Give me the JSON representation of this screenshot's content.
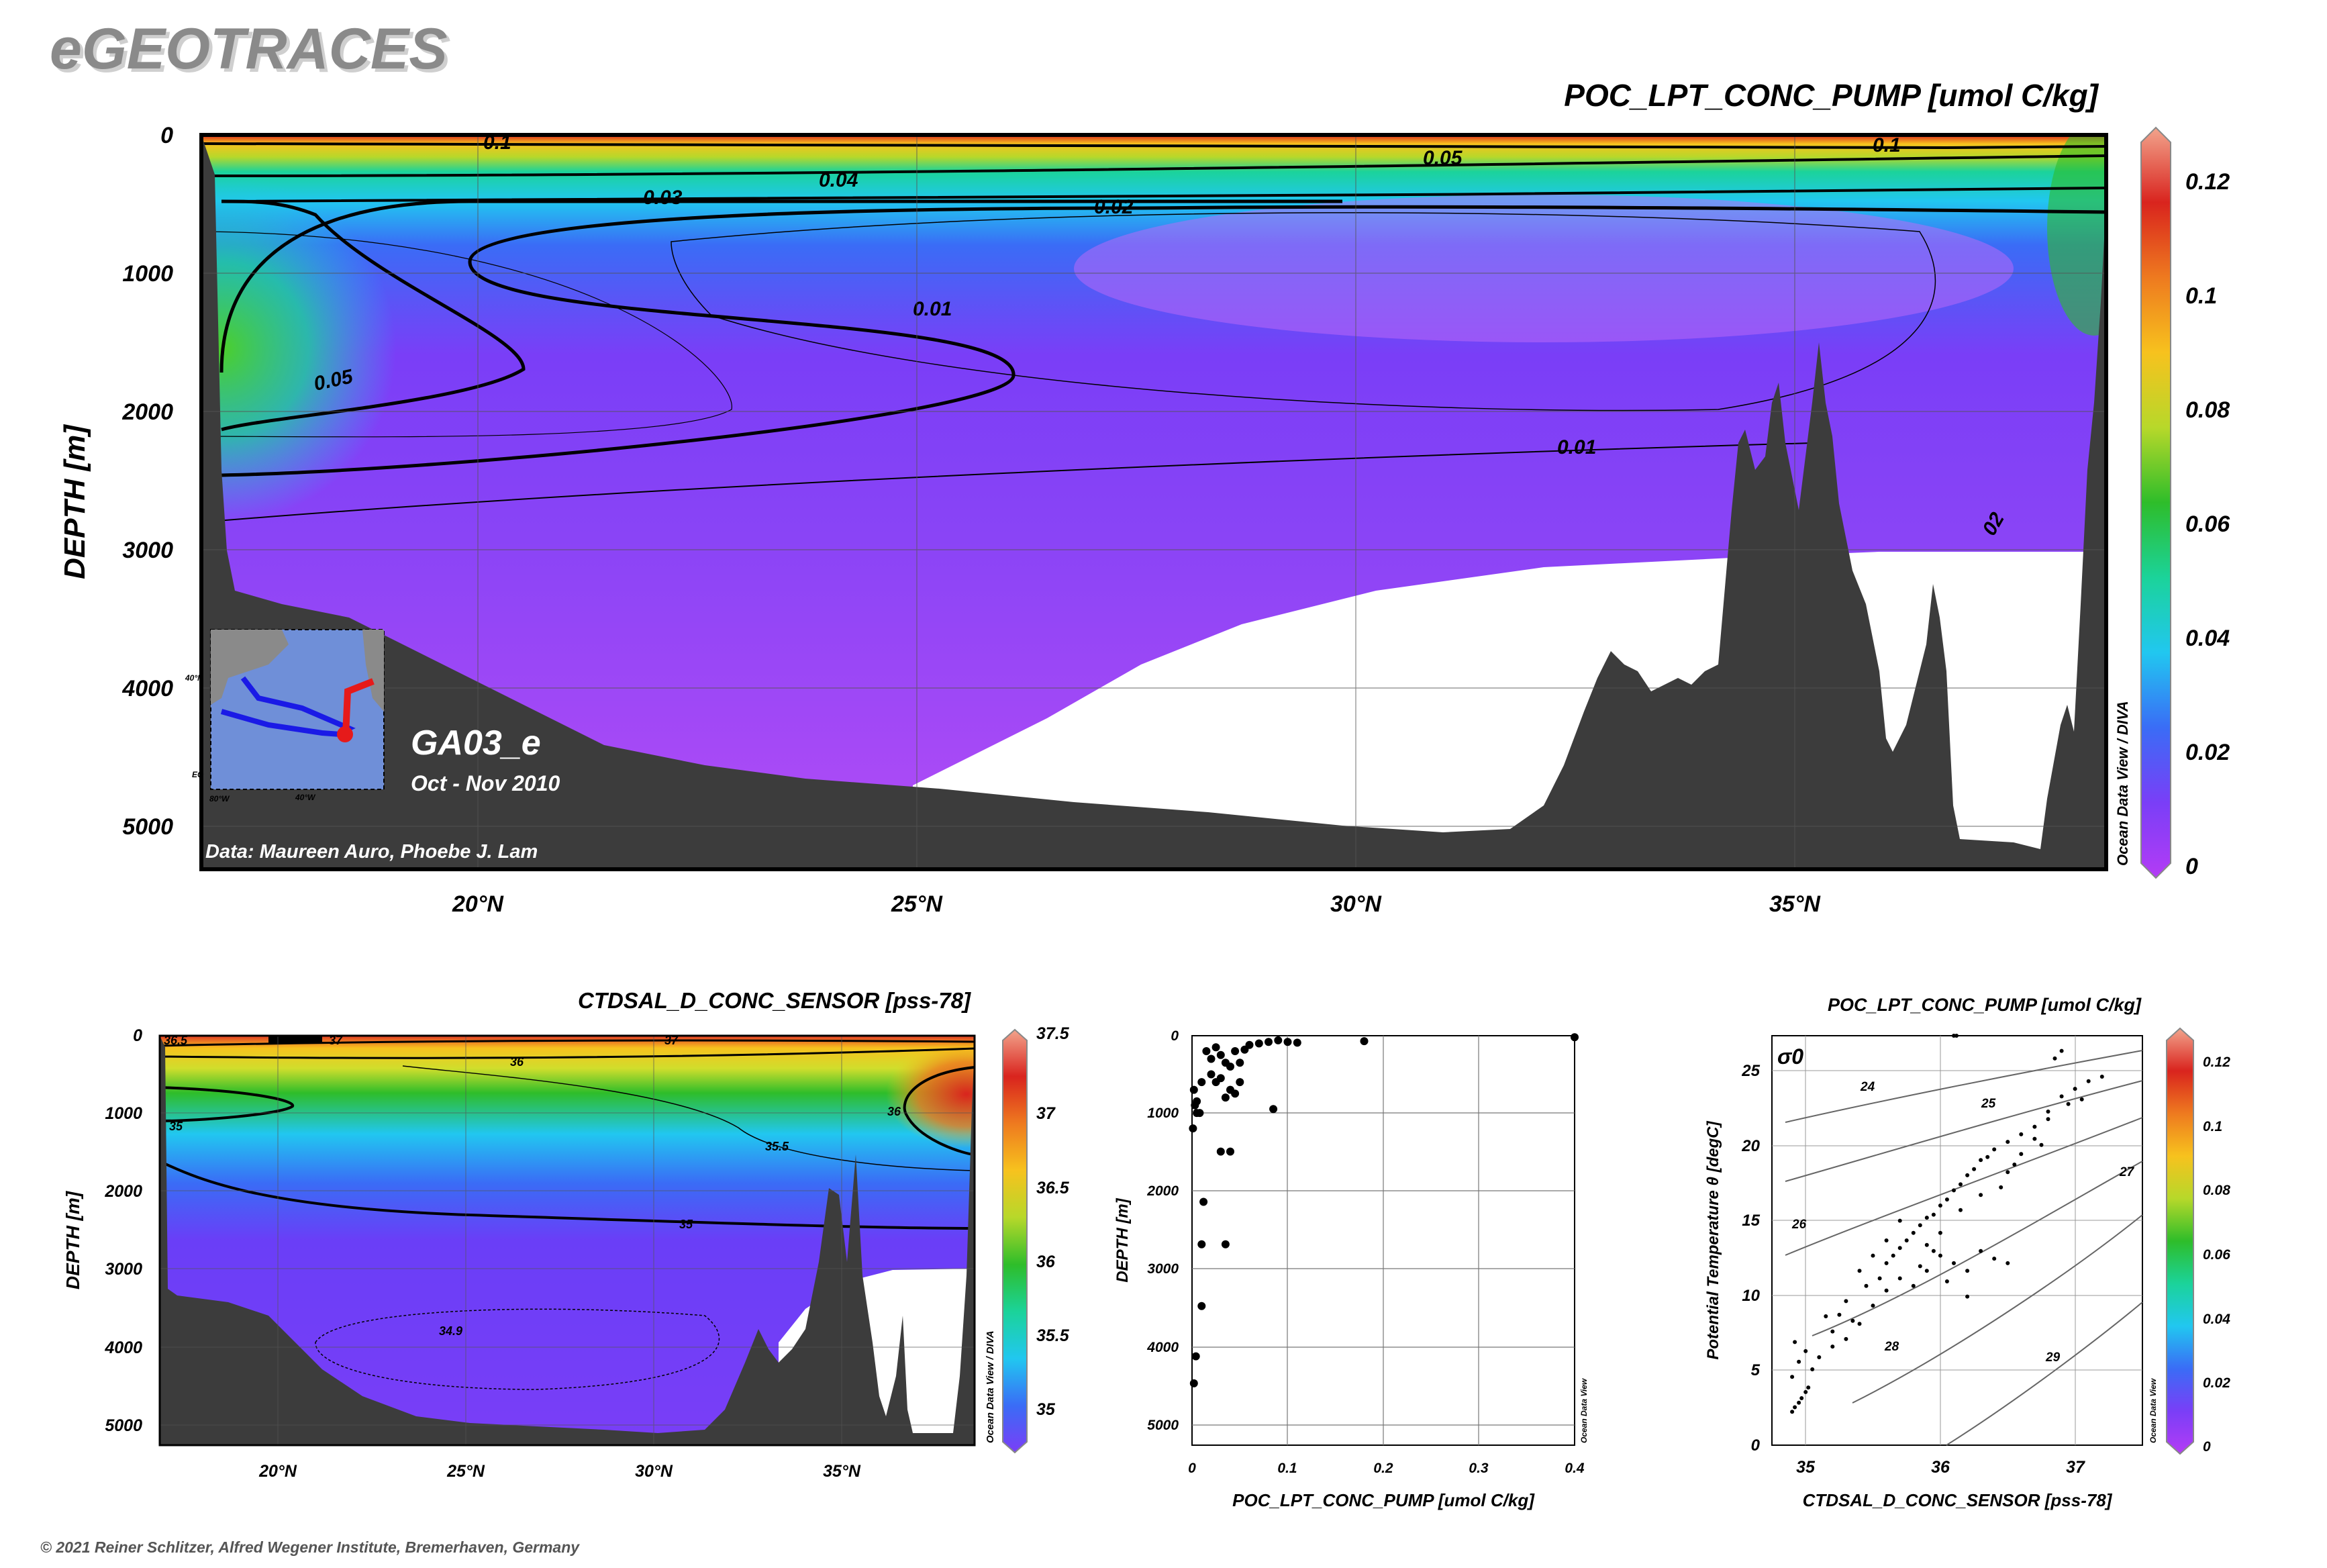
{
  "header": {
    "logo": "eGEOTRACES"
  },
  "footer": {
    "copyright": "© 2021 Reiner Schlitzer, Alfred Wegener Institute, Bremerhaven, Germany"
  },
  "colors": {
    "scale": [
      "#b43cf5",
      "#7a3ef7",
      "#3a6cf6",
      "#21c7f0",
      "#1bd39a",
      "#2ebd2a",
      "#b7d82a",
      "#f7c21e",
      "#ee7a1f",
      "#d9241e",
      "#f2a48c"
    ],
    "bathymetry": "#3c3c3c"
  },
  "chart_data": [
    {
      "type": "heatmap",
      "title": "POC_LPT_CONC_PUMP [umol C/kg]",
      "ylabel": "DEPTH [m]",
      "x_ticks": [
        "20°N",
        "25°N",
        "30°N",
        "35°N"
      ],
      "y_ticks": [
        "0",
        "1000",
        "2000",
        "3000",
        "4000",
        "5000"
      ],
      "xlim": [
        16.8,
        38.5
      ],
      "ylim": [
        0,
        5300
      ],
      "colorbar_ticks": [
        "0",
        "0.02",
        "0.04",
        "0.06",
        "0.08",
        "0.1",
        "0.12"
      ],
      "colorbar_range": [
        0,
        0.13
      ],
      "contour_labels": [
        "0.1",
        "0.05",
        "0.04",
        "0.03",
        "0.02",
        "0.01",
        "0.05",
        "0.01",
        "0.1",
        "02"
      ],
      "side_label": "Ocean Data View / DIVA",
      "section_name": "GA03_e",
      "period": "Oct - Nov 2010",
      "credit": "Data: Maureen Auro, Phoebe J. Lam",
      "inset_labels": [
        "40°N",
        "EQ",
        "80°W",
        "40°W"
      ]
    },
    {
      "type": "heatmap",
      "title": "CTDSAL_D_CONC_SENSOR [pss-78]",
      "ylabel": "DEPTH [m]",
      "x_ticks": [
        "20°N",
        "25°N",
        "30°N",
        "35°N"
      ],
      "y_ticks": [
        "0",
        "1000",
        "2000",
        "3000",
        "4000",
        "5000"
      ],
      "xlim": [
        16.8,
        38.5
      ],
      "ylim": [
        0,
        5300
      ],
      "colorbar_ticks": [
        "35",
        "35.5",
        "36",
        "36.5",
        "37",
        "37.5"
      ],
      "colorbar_range": [
        34.75,
        37.5
      ],
      "contour_labels": [
        "36.5",
        "37",
        "37",
        "36",
        "35",
        "35.5",
        "36",
        "35",
        "34.9"
      ],
      "side_label": "Ocean Data View / DIVA"
    },
    {
      "type": "scatter",
      "xlabel": "POC_LPT_CONC_PUMP [umol C/kg]",
      "ylabel": "DEPTH [m]",
      "x_ticks": [
        "0",
        "0.1",
        "0.2",
        "0.3",
        "0.4"
      ],
      "y_ticks": [
        "0",
        "1000",
        "2000",
        "3000",
        "4000",
        "5000"
      ],
      "xlim": [
        0,
        0.4
      ],
      "ylim": [
        0,
        5300
      ],
      "side_label": "Ocean Data View",
      "points": [
        [
          0.001,
          1200
        ],
        [
          0.002,
          700
        ],
        [
          0.003,
          900
        ],
        [
          0.005,
          850
        ],
        [
          0.008,
          1000
        ],
        [
          0.01,
          3500
        ],
        [
          0.004,
          4150
        ],
        [
          0.002,
          4500
        ],
        [
          0.012,
          2150
        ],
        [
          0.01,
          2700
        ],
        [
          0.035,
          2700
        ],
        [
          0.03,
          1500
        ],
        [
          0.04,
          1500
        ],
        [
          0.085,
          950
        ],
        [
          0.005,
          1000
        ],
        [
          0.01,
          600
        ],
        [
          0.015,
          200
        ],
        [
          0.02,
          300
        ],
        [
          0.025,
          150
        ],
        [
          0.03,
          250
        ],
        [
          0.035,
          350
        ],
        [
          0.04,
          400
        ],
        [
          0.045,
          200
        ],
        [
          0.05,
          350
        ],
        [
          0.055,
          180
        ],
        [
          0.06,
          120
        ],
        [
          0.07,
          100
        ],
        [
          0.08,
          80
        ],
        [
          0.09,
          60
        ],
        [
          0.1,
          80
        ],
        [
          0.11,
          90
        ],
        [
          0.18,
          70
        ],
        [
          0.4,
          20
        ],
        [
          0.02,
          500
        ],
        [
          0.025,
          600
        ],
        [
          0.03,
          550
        ],
        [
          0.04,
          700
        ],
        [
          0.045,
          750
        ],
        [
          0.05,
          600
        ],
        [
          0.035,
          800
        ]
      ]
    },
    {
      "type": "scatter",
      "title": "POC_LPT_CONC_PUMP [umol C/kg]",
      "xlabel": "CTDSAL_D_CONC_SENSOR [pss-78]",
      "ylabel": "Potential Temperature θ [degC]",
      "x_ticks": [
        "35",
        "36",
        "37"
      ],
      "y_ticks": [
        "0",
        "5",
        "10",
        "15",
        "20",
        "25"
      ],
      "xlim": [
        34.75,
        37.5
      ],
      "ylim": [
        0,
        27
      ],
      "density_label": "σ0",
      "density_contours": [
        "24",
        "25",
        "26",
        "27",
        "28",
        "29"
      ],
      "colorbar_ticks": [
        "0",
        "0.02",
        "0.04",
        "0.06",
        "0.08",
        "0.1",
        "0.12"
      ],
      "side_label": "Ocean Data View",
      "points": [
        [
          34.9,
          2.2
        ],
        [
          34.92,
          2.5
        ],
        [
          34.95,
          2.8
        ],
        [
          34.97,
          3.1
        ],
        [
          35.0,
          3.5
        ],
        [
          35.02,
          3.8
        ],
        [
          34.9,
          4.5
        ],
        [
          34.95,
          5.5
        ],
        [
          35.0,
          6.2
        ],
        [
          34.92,
          6.8
        ],
        [
          35.05,
          5.0
        ],
        [
          35.1,
          5.8
        ],
        [
          35.2,
          6.5
        ],
        [
          35.3,
          7.0
        ],
        [
          35.15,
          8.5
        ],
        [
          35.25,
          8.6
        ],
        [
          35.4,
          8.0
        ],
        [
          35.5,
          9.2
        ],
        [
          35.45,
          10.5
        ],
        [
          35.55,
          11.0
        ],
        [
          35.6,
          12.0
        ],
        [
          35.65,
          12.5
        ],
        [
          35.7,
          13.0
        ],
        [
          35.75,
          13.5
        ],
        [
          35.8,
          14.0
        ],
        [
          35.85,
          14.5
        ],
        [
          35.9,
          15.0
        ],
        [
          35.95,
          15.2
        ],
        [
          36.0,
          15.8
        ],
        [
          36.05,
          16.2
        ],
        [
          36.1,
          16.8
        ],
        [
          36.15,
          17.2
        ],
        [
          36.2,
          17.8
        ],
        [
          36.25,
          18.2
        ],
        [
          36.3,
          18.8
        ],
        [
          36.35,
          19.0
        ],
        [
          36.4,
          19.5
        ],
        [
          36.5,
          20.0
        ],
        [
          36.6,
          20.5
        ],
        [
          36.7,
          21.0
        ],
        [
          36.8,
          22.0
        ],
        [
          36.9,
          23.0
        ],
        [
          37.0,
          23.5
        ],
        [
          37.1,
          24.0
        ],
        [
          37.2,
          24.3
        ],
        [
          36.85,
          25.5
        ],
        [
          36.9,
          26.0
        ],
        [
          36.1,
          27.0
        ],
        [
          36.12,
          27.0
        ],
        [
          35.7,
          11.0
        ],
        [
          35.8,
          10.5
        ],
        [
          35.9,
          11.5
        ],
        [
          36.0,
          12.5
        ],
        [
          36.1,
          12.0
        ],
        [
          36.2,
          11.5
        ],
        [
          36.3,
          12.8
        ],
        [
          36.4,
          12.3
        ],
        [
          36.5,
          12.0
        ],
        [
          35.6,
          13.5
        ],
        [
          35.7,
          14.8
        ],
        [
          35.5,
          12.5
        ],
        [
          35.4,
          11.5
        ],
        [
          36.5,
          18.0
        ],
        [
          36.6,
          19.2
        ],
        [
          36.7,
          20.2
        ],
        [
          36.8,
          21.5
        ],
        [
          36.3,
          16.5
        ],
        [
          36.0,
          14.0
        ],
        [
          35.9,
          13.2
        ],
        [
          35.3,
          9.5
        ],
        [
          35.2,
          7.5
        ],
        [
          36.95,
          22.5
        ],
        [
          37.05,
          22.8
        ],
        [
          36.45,
          17.0
        ],
        [
          36.55,
          18.5
        ],
        [
          36.75,
          19.8
        ],
        [
          36.15,
          15.5
        ],
        [
          35.95,
          12.8
        ],
        [
          35.85,
          11.8
        ],
        [
          36.05,
          10.8
        ],
        [
          36.2,
          9.8
        ],
        [
          35.6,
          10.2
        ],
        [
          35.35,
          8.2
        ]
      ]
    }
  ]
}
